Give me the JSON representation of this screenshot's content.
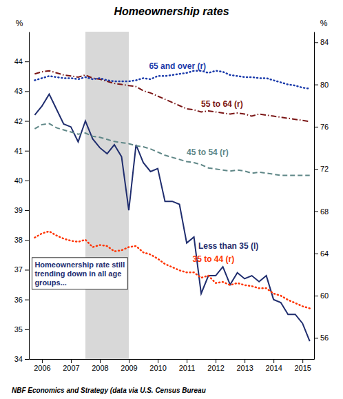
{
  "chart_data": {
    "type": "line",
    "title": "Homeownership rates",
    "footnote": "NBF Economics and Strategy (data via U.S. Census Bureau",
    "ylabel": "%",
    "y2label": "%",
    "xlim": [
      2005.55,
      2015.4
    ],
    "xticks": [
      2006,
      2007,
      2008,
      2009,
      2010,
      2011,
      2012,
      2013,
      2014,
      2015
    ],
    "ylim": [
      34,
      45
    ],
    "yticks": [
      34,
      35,
      36,
      37,
      38,
      39,
      40,
      41,
      42,
      43,
      44
    ],
    "y2lim": [
      54,
      85
    ],
    "y2ticks": [
      56,
      60,
      64,
      68,
      72,
      76,
      80,
      84
    ],
    "shade": {
      "x": [
        2007.5,
        2009.0
      ],
      "color": "#d8d8d8"
    },
    "x": [
      2005.75,
      2006.0,
      2006.25,
      2006.5,
      2006.75,
      2007.0,
      2007.25,
      2007.5,
      2007.75,
      2008.0,
      2008.25,
      2008.5,
      2008.75,
      2009.0,
      2009.25,
      2009.5,
      2009.75,
      2010.0,
      2010.25,
      2010.5,
      2010.75,
      2011.0,
      2011.25,
      2011.5,
      2011.75,
      2012.0,
      2012.25,
      2012.5,
      2012.75,
      2013.0,
      2013.25,
      2013.5,
      2013.75,
      2014.0,
      2014.25,
      2014.5,
      2014.75,
      2015.0,
      2015.25
    ],
    "series": [
      {
        "color": "#1f2d6e",
        "line_style": "solid",
        "axis": "y",
        "values": [
          42.2,
          42.5,
          42.9,
          42.4,
          41.9,
          41.8,
          41.3,
          42.0,
          41.4,
          41.1,
          40.9,
          41.2,
          40.8,
          39.0,
          41.2,
          40.6,
          40.3,
          40.4,
          39.3,
          39.3,
          39.2,
          37.9,
          38.1,
          36.2,
          36.8,
          36.8,
          37.1,
          36.5,
          36.9,
          36.7,
          36.8,
          36.6,
          36.8,
          36.0,
          35.9,
          35.5,
          35.5,
          35.2,
          34.6
        ]
      },
      {
        "color": "#ff3300",
        "line_style": "dotted",
        "axis": "y2",
        "values": [
          65.5,
          65.9,
          66.1,
          65.7,
          65.4,
          65.2,
          65.1,
          65.3,
          64.6,
          64.8,
          64.7,
          64.2,
          64.3,
          64.6,
          64.7,
          64.1,
          63.9,
          63.5,
          63.0,
          62.7,
          62.4,
          62.2,
          62.2,
          61.7,
          61.9,
          61.2,
          61.3,
          61.0,
          61.2,
          61.0,
          60.9,
          60.7,
          60.7,
          60.2,
          60.0,
          59.6,
          59.3,
          59.0,
          58.8
        ]
      },
      {
        "color": "#5f8787",
        "line_style": "dashed",
        "axis": "y2",
        "values": [
          75.8,
          76.2,
          76.3,
          75.9,
          75.7,
          75.5,
          75.3,
          75.4,
          75.1,
          75.0,
          74.8,
          74.6,
          74.5,
          74.4,
          74.2,
          74.1,
          73.9,
          73.6,
          73.3,
          73.1,
          72.9,
          72.7,
          72.6,
          72.4,
          72.1,
          72.0,
          71.9,
          71.8,
          71.9,
          71.8,
          71.6,
          71.7,
          71.6,
          71.5,
          71.4,
          71.4,
          71.4,
          71.4,
          71.4
        ]
      },
      {
        "color": "#7a1515",
        "line_style": "dashdot",
        "axis": "y2",
        "values": [
          81.0,
          81.2,
          81.3,
          81.1,
          80.9,
          80.8,
          80.7,
          80.9,
          80.6,
          80.5,
          80.3,
          80.1,
          80.0,
          79.9,
          79.8,
          79.4,
          79.2,
          78.9,
          78.6,
          78.3,
          78.0,
          77.7,
          77.6,
          77.4,
          77.5,
          77.4,
          77.3,
          77.2,
          77.3,
          77.2,
          77.0,
          77.2,
          77.1,
          77.0,
          76.9,
          76.8,
          76.7,
          76.6,
          76.5
        ]
      },
      {
        "color": "#1a3aaa",
        "line_style": "dotted",
        "axis": "y2",
        "values": [
          80.4,
          80.6,
          80.8,
          80.7,
          80.6,
          80.6,
          80.5,
          80.7,
          80.5,
          80.6,
          80.4,
          80.3,
          80.3,
          80.3,
          80.4,
          80.6,
          80.5,
          80.8,
          80.8,
          80.9,
          81.0,
          81.1,
          81.3,
          81.3,
          81.1,
          81.3,
          81.2,
          80.9,
          80.8,
          80.7,
          80.7,
          80.6,
          80.6,
          80.4,
          80.2,
          80.0,
          79.9,
          79.7,
          79.6
        ]
      }
    ],
    "annotations": [
      {
        "text": "65 and over (r)",
        "x": 2009.7,
        "y": 81.5,
        "color": "#1a3aaa",
        "axis": "y2"
      },
      {
        "text": "55 to 64 (r)",
        "x": 2011.5,
        "y": 77.9,
        "color": "#7a1515",
        "axis": "y2"
      },
      {
        "text": "45 to 54 (r)",
        "x": 2011.0,
        "y": 73.3,
        "color": "#5f8787",
        "axis": "y2"
      },
      {
        "text": "35 to 44 (r)",
        "x": 2011.2,
        "y": 63.2,
        "color": "#ff3300",
        "axis": "y2"
      },
      {
        "text": "Less than 35 (l)",
        "x": 2011.4,
        "y": 37.7,
        "color": "#1f2d6e",
        "axis": "y"
      }
    ],
    "note": {
      "text": "Homeownership rate still\ntrending down in all age\ngroups...",
      "x": 2005.75,
      "y": 36.85,
      "color": "#1f2d6e",
      "axis": "y"
    }
  }
}
